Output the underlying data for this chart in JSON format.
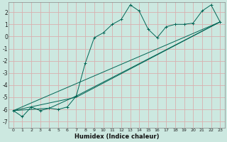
{
  "xlabel": "Humidex (Indice chaleur)",
  "background_color": "#cce8e0",
  "grid_color": "#d8b0b0",
  "line_color": "#006655",
  "xlim": [
    -0.5,
    23.5
  ],
  "ylim": [
    -7.5,
    2.8
  ],
  "xticks": [
    0,
    1,
    2,
    3,
    4,
    5,
    6,
    7,
    8,
    9,
    10,
    11,
    12,
    13,
    14,
    15,
    16,
    17,
    18,
    19,
    20,
    21,
    22,
    23
  ],
  "yticks": [
    -7,
    -6,
    -5,
    -4,
    -3,
    -2,
    -1,
    0,
    1,
    2
  ],
  "series_main": {
    "x": [
      0,
      1,
      2,
      3,
      4,
      5,
      6,
      7,
      8,
      9,
      10,
      11,
      12,
      13,
      14,
      15,
      16,
      17,
      18,
      19,
      20,
      21,
      22,
      23
    ],
    "y": [
      -6.1,
      -6.6,
      -5.8,
      -6.1,
      -5.9,
      -6.0,
      -5.8,
      -4.9,
      -2.2,
      -0.1,
      0.3,
      1.0,
      1.4,
      2.6,
      2.1,
      0.6,
      -0.1,
      0.8,
      1.0,
      1.0,
      1.1,
      2.1,
      2.6,
      1.2
    ]
  },
  "series_lines": [
    {
      "x": [
        0,
        23
      ],
      "y": [
        -6.1,
        1.2
      ]
    },
    {
      "x": [
        0,
        7,
        23
      ],
      "y": [
        -6.1,
        -5.0,
        1.2
      ]
    },
    {
      "x": [
        0,
        4,
        7,
        23
      ],
      "y": [
        -6.1,
        -5.9,
        -4.9,
        1.2
      ]
    }
  ]
}
